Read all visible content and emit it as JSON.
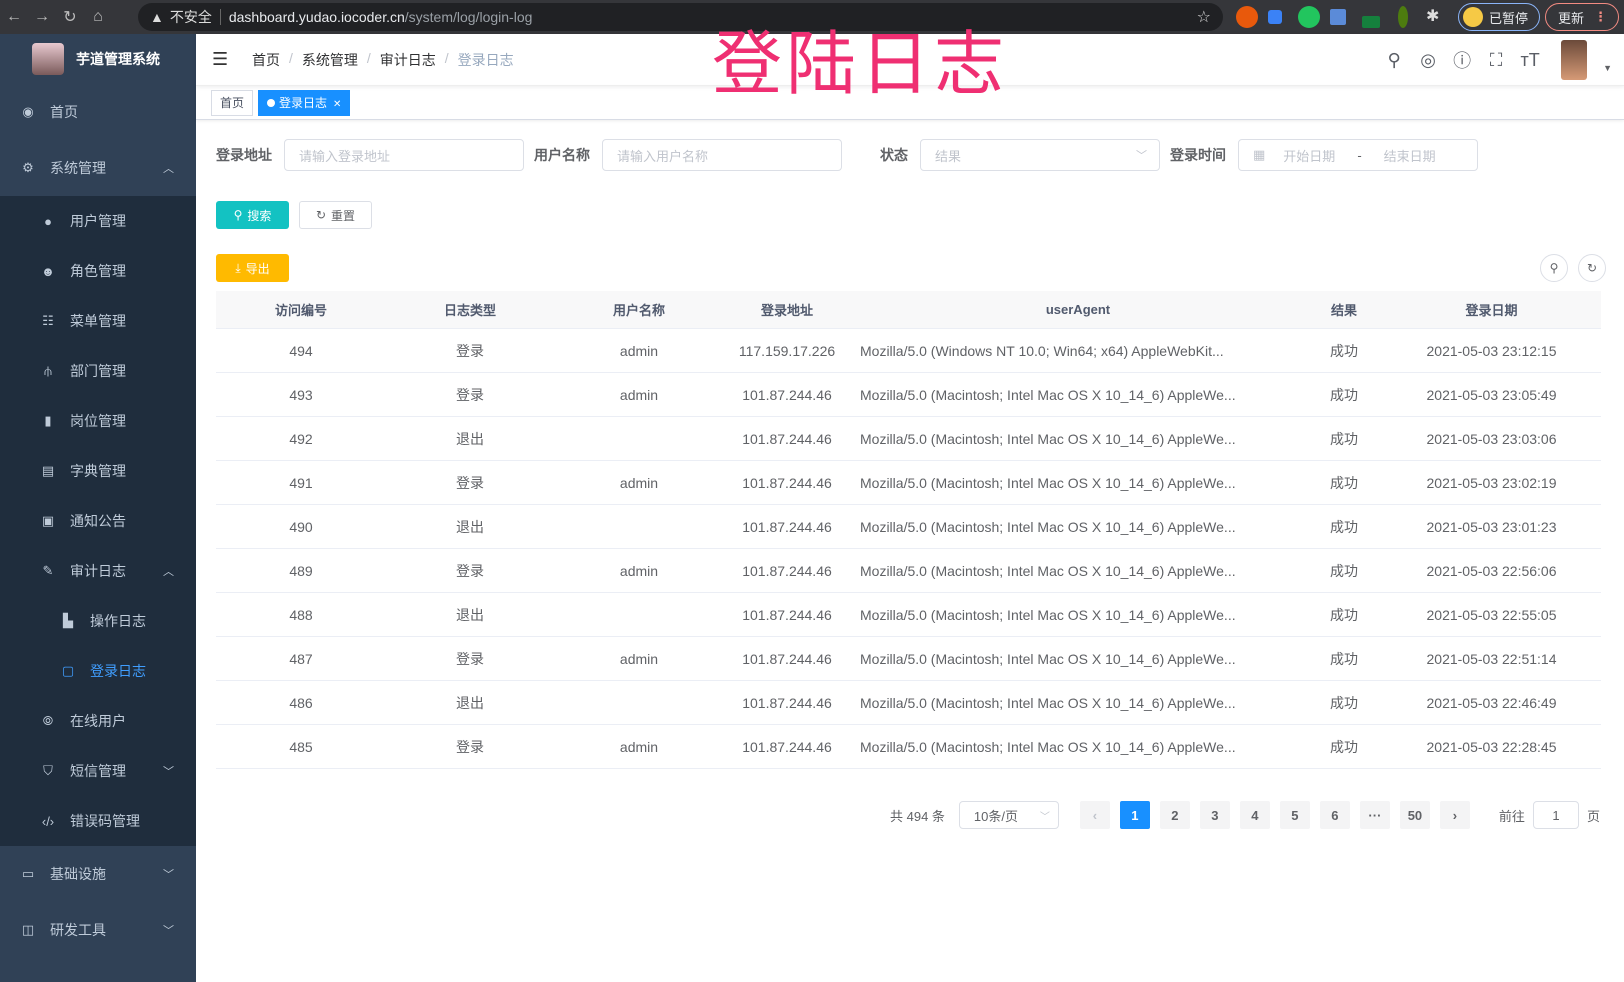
{
  "browser": {
    "security": "不安全",
    "url_host": "dashboard.yudao.iocoder.cn",
    "url_path": "/system/log/login-log",
    "profile": "已暂停",
    "update": "更新"
  },
  "watermark": "登陆日志",
  "sidebar": {
    "title": "芋道管理系统",
    "items": [
      {
        "label": "首页",
        "icon": "dashboard-icon"
      },
      {
        "label": "系统管理",
        "icon": "gear-icon",
        "expanded": true
      },
      {
        "label": "用户管理",
        "icon": "user-icon"
      },
      {
        "label": "角色管理",
        "icon": "peoples-icon"
      },
      {
        "label": "菜单管理",
        "icon": "tree-table-icon"
      },
      {
        "label": "部门管理",
        "icon": "tree-icon"
      },
      {
        "label": "岗位管理",
        "icon": "post-icon"
      },
      {
        "label": "字典管理",
        "icon": "dict-icon"
      },
      {
        "label": "通知公告",
        "icon": "message-icon"
      },
      {
        "label": "审计日志",
        "icon": "log-icon",
        "expanded": true
      },
      {
        "label": "操作日志",
        "icon": "form-icon"
      },
      {
        "label": "登录日志",
        "icon": "logininfor-icon",
        "active": true
      },
      {
        "label": "在线用户",
        "icon": "online-icon"
      },
      {
        "label": "短信管理",
        "icon": "shield-icon"
      },
      {
        "label": "错误码管理",
        "icon": "code-icon"
      },
      {
        "label": "基础设施",
        "icon": "monitor-icon"
      },
      {
        "label": "研发工具",
        "icon": "tool-icon"
      }
    ],
    "active_color": "#409eff"
  },
  "breadcrumb": [
    "首页",
    "系统管理",
    "审计日志",
    "登录日志"
  ],
  "tags": [
    {
      "label": "首页"
    },
    {
      "label": "登录日志",
      "active": true
    }
  ],
  "filters": {
    "address_label": "登录地址",
    "address_placeholder": "请输入登录地址",
    "username_label": "用户名称",
    "username_placeholder": "请输入用户名称",
    "status_label": "状态",
    "status_placeholder": "结果",
    "time_label": "登录时间",
    "start_placeholder": "开始日期",
    "range_sep": "-",
    "end_placeholder": "结束日期"
  },
  "buttons": {
    "search": "搜索",
    "reset": "重置",
    "export": "导出"
  },
  "colors": {
    "search": "#13c2c2",
    "export": "#ffba00",
    "primary": "#1890ff"
  },
  "table": {
    "headers": [
      "访问编号",
      "日志类型",
      "用户名称",
      "登录地址",
      "userAgent",
      "结果",
      "登录日期"
    ],
    "rows": [
      [
        "494",
        "登录",
        "admin",
        "117.159.17.226",
        "Mozilla/5.0 (Windows NT 10.0; Win64; x64) AppleWebKit...",
        "成功",
        "2021-05-03 23:12:15"
      ],
      [
        "493",
        "登录",
        "admin",
        "101.87.244.46",
        "Mozilla/5.0 (Macintosh; Intel Mac OS X 10_14_6) AppleWe...",
        "成功",
        "2021-05-03 23:05:49"
      ],
      [
        "492",
        "退出",
        "",
        "101.87.244.46",
        "Mozilla/5.0 (Macintosh; Intel Mac OS X 10_14_6) AppleWe...",
        "成功",
        "2021-05-03 23:03:06"
      ],
      [
        "491",
        "登录",
        "admin",
        "101.87.244.46",
        "Mozilla/5.0 (Macintosh; Intel Mac OS X 10_14_6) AppleWe...",
        "成功",
        "2021-05-03 23:02:19"
      ],
      [
        "490",
        "退出",
        "",
        "101.87.244.46",
        "Mozilla/5.0 (Macintosh; Intel Mac OS X 10_14_6) AppleWe...",
        "成功",
        "2021-05-03 23:01:23"
      ],
      [
        "489",
        "登录",
        "admin",
        "101.87.244.46",
        "Mozilla/5.0 (Macintosh; Intel Mac OS X 10_14_6) AppleWe...",
        "成功",
        "2021-05-03 22:56:06"
      ],
      [
        "488",
        "退出",
        "",
        "101.87.244.46",
        "Mozilla/5.0 (Macintosh; Intel Mac OS X 10_14_6) AppleWe...",
        "成功",
        "2021-05-03 22:55:05"
      ],
      [
        "487",
        "登录",
        "admin",
        "101.87.244.46",
        "Mozilla/5.0 (Macintosh; Intel Mac OS X 10_14_6) AppleWe...",
        "成功",
        "2021-05-03 22:51:14"
      ],
      [
        "486",
        "退出",
        "",
        "101.87.244.46",
        "Mozilla/5.0 (Macintosh; Intel Mac OS X 10_14_6) AppleWe...",
        "成功",
        "2021-05-03 22:46:49"
      ],
      [
        "485",
        "登录",
        "admin",
        "101.87.244.46",
        "Mozilla/5.0 (Macintosh; Intel Mac OS X 10_14_6) AppleWe...",
        "成功",
        "2021-05-03 22:28:45"
      ]
    ]
  },
  "pagination": {
    "total": "共 494 条",
    "page_size": "10条/页",
    "pages": [
      "1",
      "2",
      "3",
      "4",
      "5",
      "6",
      "···",
      "50"
    ],
    "current": "1",
    "goto_label": "前往",
    "goto_value": "1",
    "goto_suffix": "页"
  }
}
